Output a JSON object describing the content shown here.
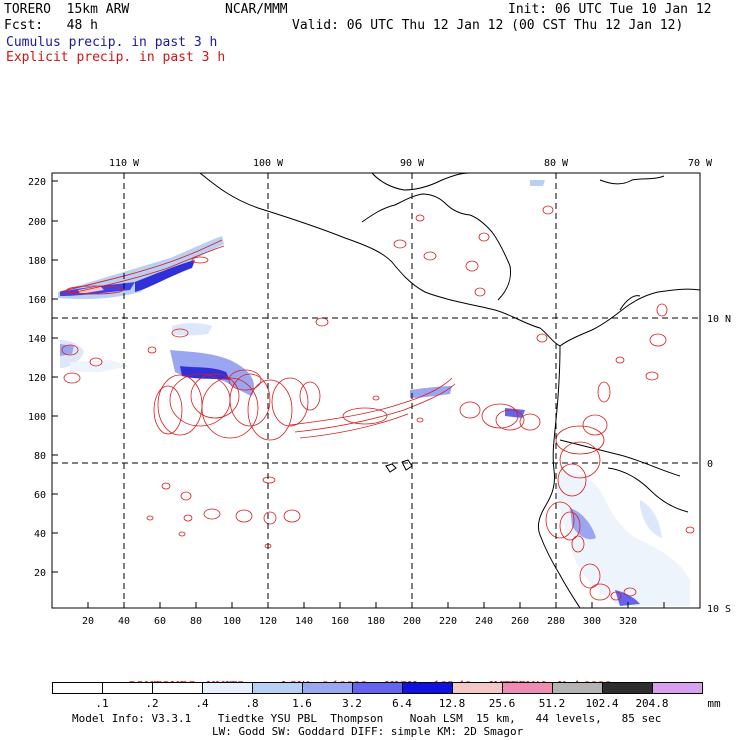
{
  "header": {
    "model": "TORERO  15km ARW",
    "org": "NCAR/MMM",
    "init": "Init: 06 UTC Tue 10 Jan 12",
    "fcst": "Fcst:   48 h",
    "valid": "Valid: 06 UTC Thu 12 Jan 12 (00 CST Thu 12 Jan 12)",
    "cumulus_label": "Cumulus precip. in past 3 h",
    "explicit_label": "Explicit precip. in past 3 h"
  },
  "axes": {
    "top_lon_labels": [
      "110 W",
      "100 W",
      "90 W",
      "80 W",
      "70 W"
    ],
    "right_lat_labels": [
      "10 N",
      "0",
      "10 S"
    ],
    "left_grid_labels": [
      "220",
      "200",
      "180",
      "160",
      "140",
      "120",
      "100",
      "80",
      "60",
      "40",
      "20"
    ],
    "bottom_grid_labels": [
      "20",
      "40",
      "60",
      "80",
      "100",
      "120",
      "140",
      "160",
      "180",
      "200",
      "220",
      "240",
      "260",
      "280",
      "300",
      "320"
    ]
  },
  "contours_line": {
    "title": "CONTOURS:",
    "units": "UNITS=mm",
    "low": "LOW= 0.10000",
    "high": "HIGH=  102.40",
    "interval": "INTERVAL=X  4.0000"
  },
  "colorbar": {
    "unit": "mm",
    "labels": [
      ".1",
      ".2",
      ".4",
      ".8",
      "1.6",
      "3.2",
      "6.4",
      "12.8",
      "25.6",
      "51.2",
      "102.4",
      "204.8"
    ],
    "colors": [
      "#ffffff",
      "#ffffff",
      "#ffffff",
      "#e6f0ff",
      "#b9d0f5",
      "#9aa6f0",
      "#6464f0",
      "#1010e0",
      "#f5c8c8",
      "#f08cb4",
      "#b4b4b4",
      "#2e2e2e",
      "#d8a0f0"
    ]
  },
  "footer": {
    "line1": "Model Info: V3.3.1    Tiedtke YSU PBL  Thompson    Noah LSM  15 km,   44 levels,   85 sec",
    "line2": "LW: Godd SW: Goddard DIFF: simple KM: 2D Smagor"
  }
}
